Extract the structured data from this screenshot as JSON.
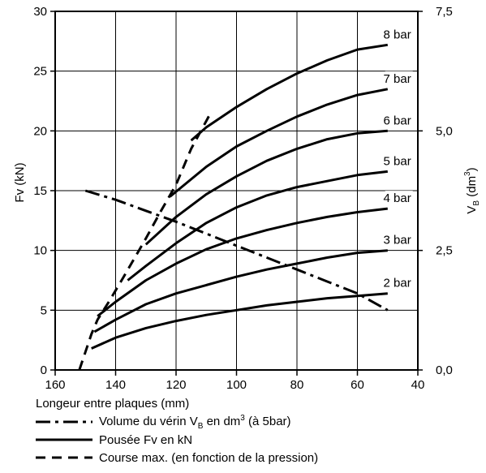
{
  "chart_data": {
    "type": "line",
    "x_axis": {
      "label": "Longeur entre plaques (mm)",
      "range": [
        160,
        40
      ],
      "ticks": [
        "160",
        "140",
        "120",
        "100",
        "80",
        "60",
        "40"
      ]
    },
    "y_left": {
      "label": "Fv (kN)",
      "range": [
        0,
        30
      ],
      "ticks": [
        "0",
        "5",
        "10",
        "15",
        "20",
        "25",
        "30"
      ]
    },
    "y_right": {
      "label_main": "V",
      "label_sub": "B",
      "label_unit": " (dm",
      "label_sup": "3",
      "label_end": ")",
      "range": [
        0,
        7.5
      ],
      "ticks": [
        "0,0",
        "2,5",
        "5,0",
        "7,5"
      ]
    },
    "grid": true,
    "force_series": [
      {
        "name": "2 bar",
        "x": [
          148,
          140,
          130,
          120,
          110,
          100,
          90,
          80,
          70,
          60,
          50
        ],
        "y": [
          1.8,
          2.7,
          3.5,
          4.1,
          4.6,
          5.0,
          5.4,
          5.7,
          6.0,
          6.2,
          6.4
        ]
      },
      {
        "name": "3 bar",
        "x": [
          147,
          140,
          130,
          120,
          110,
          100,
          90,
          80,
          70,
          60,
          50
        ],
        "y": [
          3.2,
          4.2,
          5.5,
          6.4,
          7.1,
          7.8,
          8.4,
          8.9,
          9.4,
          9.8,
          10.0
        ]
      },
      {
        "name": "4 bar",
        "x": [
          146,
          140,
          130,
          120,
          110,
          100,
          90,
          80,
          70,
          60,
          50
        ],
        "y": [
          4.5,
          5.7,
          7.5,
          8.9,
          10.1,
          11.0,
          11.7,
          12.3,
          12.8,
          13.2,
          13.5
        ]
      },
      {
        "name": "5 bar",
        "x": [
          136,
          130,
          120,
          110,
          100,
          90,
          80,
          70,
          60,
          50
        ],
        "y": [
          7.5,
          8.7,
          10.6,
          12.3,
          13.6,
          14.6,
          15.3,
          15.8,
          16.3,
          16.6
        ]
      },
      {
        "name": "6 bar",
        "x": [
          130,
          120,
          110,
          100,
          90,
          80,
          70,
          60,
          50
        ],
        "y": [
          10.5,
          12.8,
          14.7,
          16.2,
          17.5,
          18.5,
          19.3,
          19.8,
          20.0
        ]
      },
      {
        "name": "7 bar",
        "x": [
          122,
          110,
          100,
          90,
          80,
          70,
          60,
          50
        ],
        "y": [
          14.5,
          17.0,
          18.7,
          20.0,
          21.2,
          22.2,
          23.0,
          23.5
        ]
      },
      {
        "name": "8 bar",
        "x": [
          115,
          110,
          100,
          90,
          80,
          70,
          60,
          50
        ],
        "y": [
          19.2,
          20.3,
          22.0,
          23.5,
          24.8,
          25.9,
          26.8,
          27.2
        ]
      }
    ],
    "volume_series": {
      "x": [
        150,
        140,
        130,
        120,
        110,
        100,
        90,
        80,
        70,
        60,
        50
      ],
      "y_vb": [
        3.75,
        3.56,
        3.33,
        3.1,
        2.85,
        2.6,
        2.35,
        2.1,
        1.85,
        1.6,
        1.25
      ]
    },
    "course_series": {
      "x": [
        152,
        148,
        146,
        142,
        138,
        135,
        130,
        125,
        120,
        115,
        109
      ],
      "y": [
        0,
        3.0,
        4.2,
        5.8,
        7.5,
        8.8,
        11.0,
        13.3,
        15.5,
        18.5,
        21.3
      ]
    },
    "legend": {
      "title": "Longeur entre plaques (mm)",
      "volume": {
        "text": "Volume du vérin V",
        "sub": "B",
        "mid": " en dm",
        "sup": "3",
        "end": " (à 5bar)"
      },
      "force": "Pousée Fv en kN",
      "course": "Course max. (en fonction de la pression)"
    }
  }
}
